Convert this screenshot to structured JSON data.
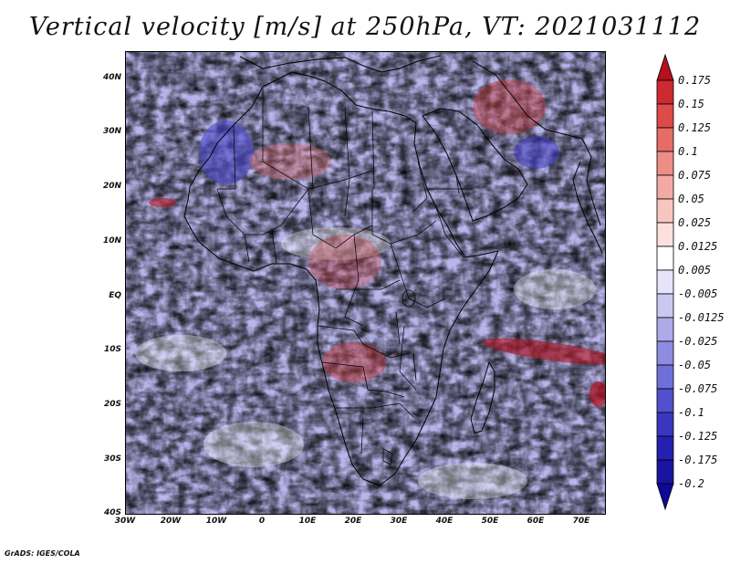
{
  "title": "Vertical velocity [m/s] at 250hPa, VT: 2021031112",
  "footer": "GrADS: IGES/COLA",
  "map": {
    "region": "Africa",
    "lon_range": [
      -30,
      76
    ],
    "lat_range": [
      -40,
      45
    ],
    "lat_labels": [
      "40N",
      "30N",
      "20N",
      "10N",
      "EQ",
      "10S",
      "20S",
      "30S",
      "40S"
    ],
    "lon_labels": [
      "30W",
      "20W",
      "10W",
      "0",
      "10E",
      "20E",
      "30E",
      "40E",
      "50E",
      "60E",
      "70E"
    ]
  },
  "colorbar": {
    "labels": [
      "0.175",
      "0.15",
      "0.125",
      "0.1",
      "0.075",
      "0.05",
      "0.025",
      "0.0125",
      "0.005",
      "-0.005",
      "-0.0125",
      "-0.025",
      "-0.05",
      "-0.075",
      "-0.1",
      "-0.125",
      "-0.175",
      "-0.2"
    ],
    "colors": [
      "#b4101e",
      "#cc2a30",
      "#dc4a4a",
      "#e66c68",
      "#ee8c86",
      "#f3aaa4",
      "#f8c6c0",
      "#fbe0dc",
      "#ffffff",
      "#e6e4f8",
      "#cac8f0",
      "#acaae8",
      "#8e8ce0",
      "#706ed8",
      "#5250cc",
      "#3a36c0",
      "#2420b0",
      "#1a14a0",
      "#100898"
    ]
  }
}
